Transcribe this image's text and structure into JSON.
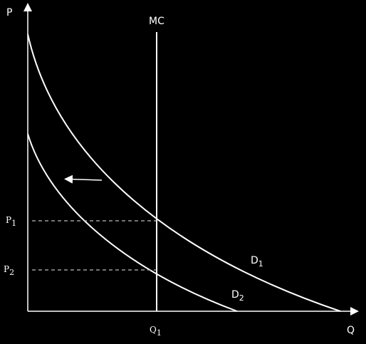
{
  "axes": {
    "y_label": "P",
    "x_label": "Q"
  },
  "curves": {
    "mc": "MC",
    "d1": {
      "main": "D",
      "sub": "1"
    },
    "d2": {
      "main": "D",
      "sub": "2"
    }
  },
  "levels": {
    "p1": {
      "main": "P",
      "sub": "1"
    },
    "p2": {
      "main": "P",
      "sub": "2"
    },
    "q1": {
      "main": "Q",
      "sub": "1"
    }
  }
}
